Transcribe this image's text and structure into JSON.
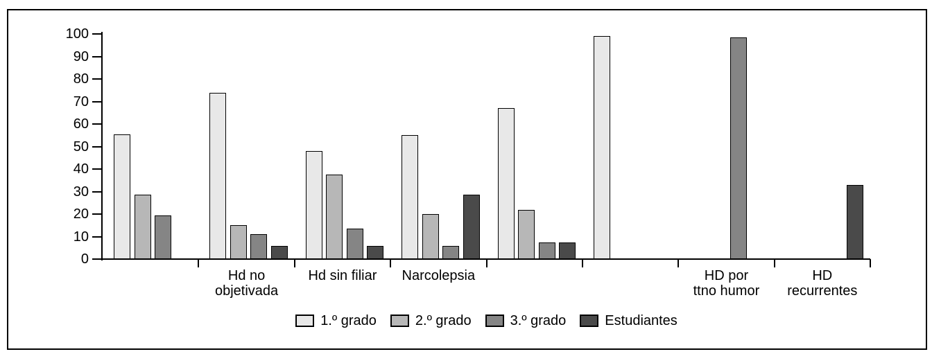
{
  "figure": {
    "background_color": "#ffffff",
    "frame_border_color": "#000000"
  },
  "chart_data": {
    "type": "bar",
    "title": "",
    "xlabel": "",
    "ylabel": "",
    "ylim": [
      0,
      100
    ],
    "yticks": [
      0,
      10,
      20,
      30,
      40,
      50,
      60,
      70,
      80,
      90,
      100
    ],
    "grid": false,
    "legend_position": "bottom-center",
    "axis_color": "#000000",
    "bar_border_color": "#000000",
    "categories": [
      {
        "label_lines": []
      },
      {
        "label_lines": [
          "Hd no",
          "objetivada"
        ]
      },
      {
        "label_lines": [
          "Hd sin filiar"
        ]
      },
      {
        "label_lines": [
          "Narcolepsia"
        ]
      },
      {
        "label_lines": []
      },
      {
        "label_lines": []
      },
      {
        "label_lines": [
          "HD por",
          "ttno humor"
        ]
      },
      {
        "label_lines": [
          "HD",
          "recurrentes"
        ]
      }
    ],
    "series": [
      {
        "name": "1.º grado",
        "color": "#e8e8e8",
        "values": [
          55.5,
          74,
          48,
          55,
          67,
          99,
          0,
          0
        ]
      },
      {
        "name": "2.º grado",
        "color": "#b7b7b7",
        "values": [
          28.5,
          15,
          37.5,
          20,
          22,
          0,
          0,
          0
        ]
      },
      {
        "name": "3.º grado",
        "color": "#858585",
        "values": [
          19.5,
          11,
          13.5,
          6,
          7.5,
          0,
          98.5,
          0
        ]
      },
      {
        "name": "Estudiantes",
        "color": "#4a4a4a",
        "values": [
          0,
          6,
          6,
          28.5,
          7.5,
          0,
          0,
          33
        ]
      }
    ]
  }
}
